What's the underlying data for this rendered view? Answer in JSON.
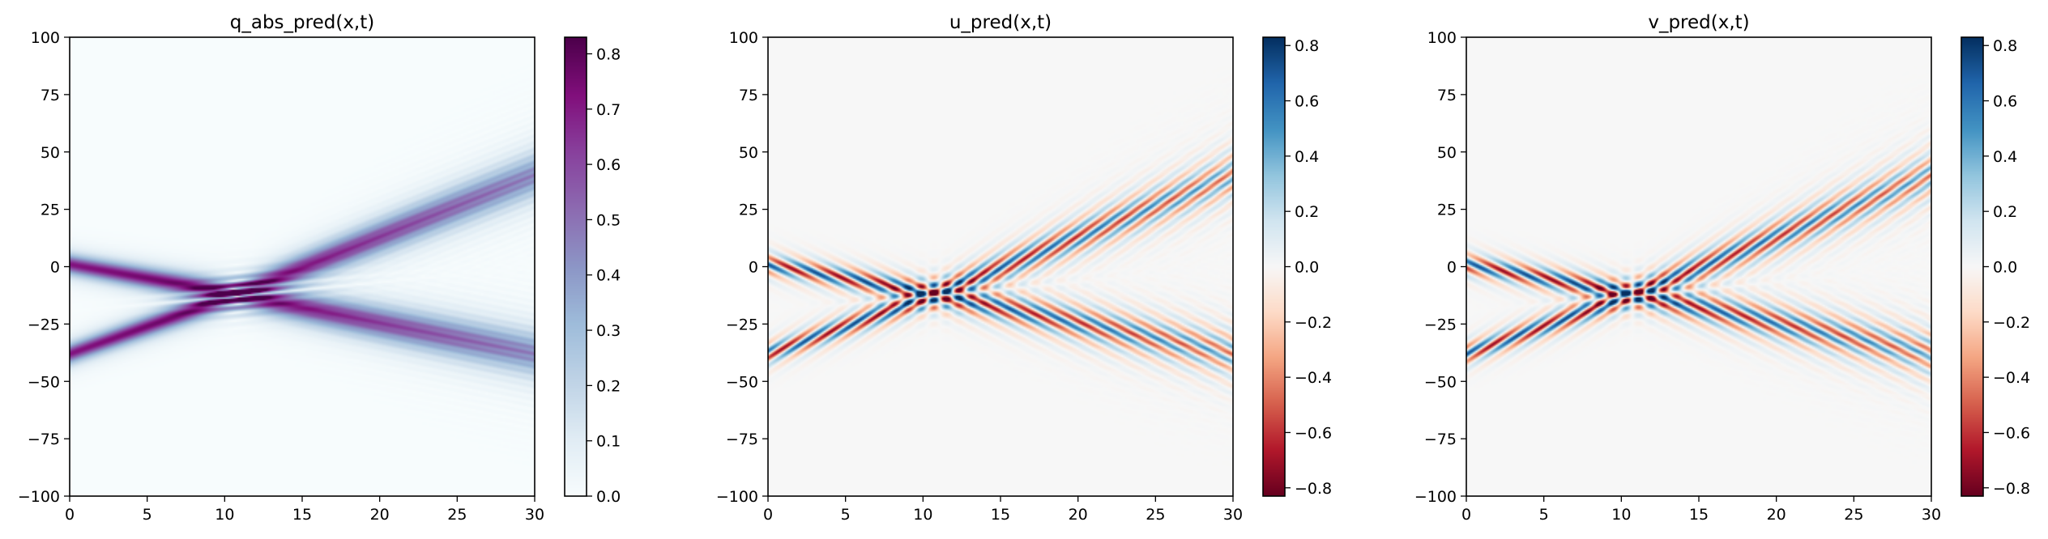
{
  "chart_data": [
    {
      "type": "heatmap",
      "title": "q_abs_pred(x,t)",
      "quantity": "abs",
      "colormap": "BuPu",
      "x_ticks": [
        0,
        5,
        10,
        15,
        20,
        25,
        30
      ],
      "y_ticks": [
        -100,
        -75,
        -50,
        -25,
        0,
        25,
        50,
        75,
        100
      ],
      "xlim": [
        0,
        30
      ],
      "ylim": [
        -100,
        100
      ],
      "colorbar_ticks": [
        "0.0",
        "0.1",
        "0.2",
        "0.3",
        "0.4",
        "0.5",
        "0.6",
        "0.7",
        "0.8"
      ],
      "colorbar_values": [
        0,
        0.1,
        0.2,
        0.3,
        0.4,
        0.5,
        0.6,
        0.7,
        0.8
      ],
      "colorbar_range": [
        0,
        0.83
      ],
      "grid": false
    },
    {
      "type": "heatmap",
      "title": "u_pred(x,t)",
      "quantity": "real",
      "colormap": "RdBu",
      "x_ticks": [
        0,
        5,
        10,
        15,
        20,
        25,
        30
      ],
      "y_ticks": [
        -100,
        -75,
        -50,
        -25,
        0,
        25,
        50,
        75,
        100
      ],
      "xlim": [
        0,
        30
      ],
      "ylim": [
        -100,
        100
      ],
      "colorbar_ticks": [
        "−0.8",
        "−0.6",
        "−0.4",
        "−0.2",
        "0.0",
        "0.2",
        "0.4",
        "0.6",
        "0.8"
      ],
      "colorbar_values": [
        -0.8,
        -0.6,
        -0.4,
        -0.2,
        0,
        0.2,
        0.4,
        0.6,
        0.8
      ],
      "colorbar_range": [
        -0.83,
        0.83
      ],
      "grid": false
    },
    {
      "type": "heatmap",
      "title": "v_pred(x,t)",
      "quantity": "imag",
      "colormap": "RdBu",
      "x_ticks": [
        0,
        5,
        10,
        15,
        20,
        25,
        30
      ],
      "y_ticks": [
        -100,
        -75,
        -50,
        -25,
        0,
        25,
        50,
        75,
        100
      ],
      "xlim": [
        0,
        30
      ],
      "ylim": [
        -100,
        100
      ],
      "colorbar_ticks": [
        "−0.8",
        "−0.6",
        "−0.4",
        "−0.2",
        "0.0",
        "0.2",
        "0.4",
        "0.6",
        "0.8"
      ],
      "colorbar_values": [
        -0.8,
        -0.6,
        -0.4,
        -0.2,
        0,
        0.2,
        0.4,
        0.6,
        0.8
      ],
      "colorbar_range": [
        -0.83,
        0.83
      ],
      "grid": false
    }
  ],
  "field_model": {
    "beams": [
      {
        "t": [
          0,
          10,
          30
        ],
        "x": [
          1,
          -11,
          -38
        ],
        "amplitude": [
          0.72,
          0.8,
          0.45
        ],
        "width": [
          3,
          3.5,
          7
        ]
      },
      {
        "t": [
          0,
          10,
          30
        ],
        "x": [
          -38,
          -14,
          40
        ],
        "amplitude": [
          0.72,
          0.8,
          0.45
        ],
        "width": [
          3,
          3.5,
          7
        ]
      }
    ],
    "carrier_wavenumber": 0.9,
    "frequency": 2.0
  },
  "colors": {
    "bupu": [
      "#f7fcfd",
      "#e0ecf4",
      "#bfd3e6",
      "#9ebcda",
      "#8c96c6",
      "#8c6bb1",
      "#88419d",
      "#810f7c",
      "#4d004b"
    ],
    "rdbu": [
      "#67001f",
      "#b2182b",
      "#d6604d",
      "#f4a582",
      "#fddbc7",
      "#f7f7f7",
      "#d1e5f0",
      "#92c5de",
      "#4393c3",
      "#2166ac",
      "#053061"
    ]
  }
}
